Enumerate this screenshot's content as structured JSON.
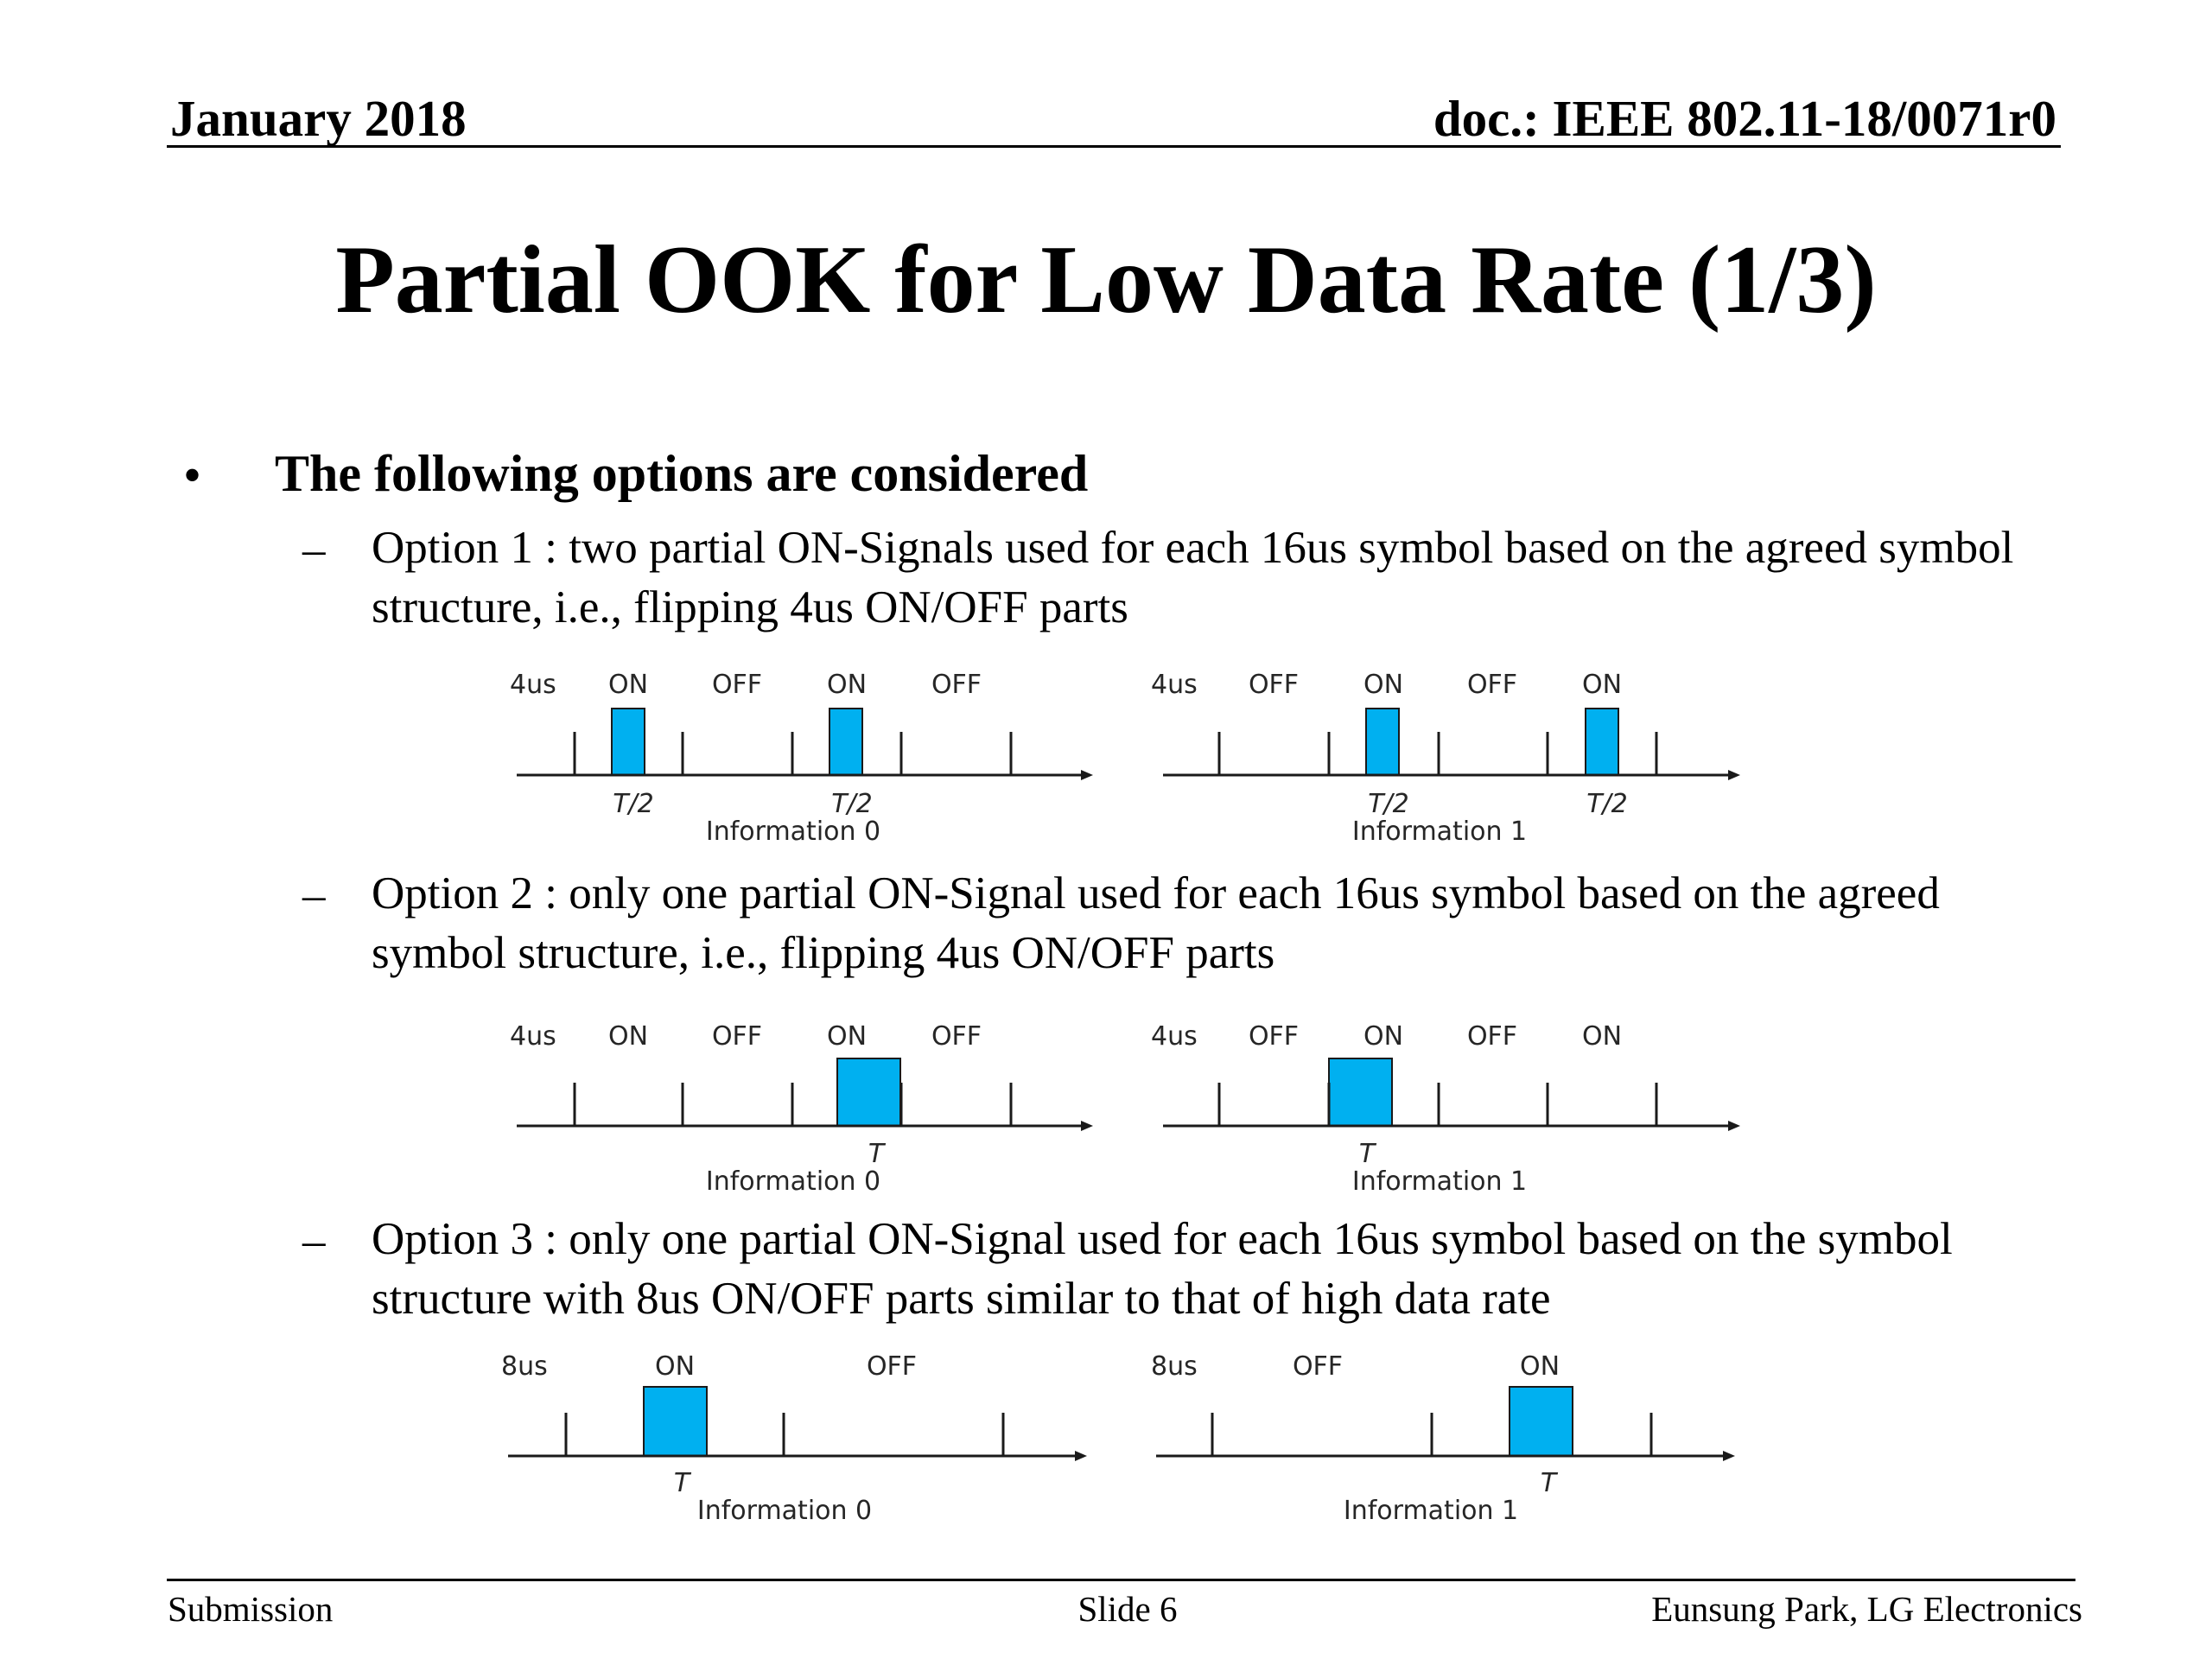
{
  "header": {
    "date": "January 2018",
    "doc": "doc.: IEEE 802.11-18/0071r0"
  },
  "title": "Partial OOK for Low Data Rate (1/3)",
  "bullet": {
    "marker": "•",
    "text": "The following options are considered"
  },
  "options": [
    {
      "marker": "–",
      "text": "Option 1 : two partial ON-Signals used for each 16us symbol based on the agreed symbol structure, i.e., flipping 4us ON/OFF parts"
    },
    {
      "marker": "–",
      "text": "Option 2 : only one partial ON-Signal used for each 16us symbol based on the agreed symbol structure, i.e., flipping 4us ON/OFF parts"
    },
    {
      "marker": "–",
      "text": "Option 3 : only one partial ON-Signal used for each 16us symbol based on the symbol structure with 8us ON/OFF parts similar to that of high data rate"
    }
  ],
  "diagrams": [
    {
      "unit": "4us",
      "labels": [
        "ON",
        "OFF",
        "ON",
        "OFF"
      ],
      "pulse_labels": [
        "T/2",
        "T/2"
      ],
      "caption": "Information 0"
    },
    {
      "unit": "4us",
      "labels": [
        "OFF",
        "ON",
        "OFF",
        "ON"
      ],
      "pulse_labels": [
        "T/2",
        "T/2"
      ],
      "caption": "Information 1"
    },
    {
      "unit": "4us",
      "labels": [
        "ON",
        "OFF",
        "ON",
        "OFF"
      ],
      "pulse_labels": [
        "T"
      ],
      "caption": "Information 0"
    },
    {
      "unit": "4us",
      "labels": [
        "OFF",
        "ON",
        "OFF",
        "ON"
      ],
      "pulse_labels": [
        "T"
      ],
      "caption": "Information 1"
    },
    {
      "unit": "8us",
      "labels": [
        "ON",
        "OFF"
      ],
      "pulse_labels": [
        "T"
      ],
      "caption": "Information 0"
    },
    {
      "unit": "8us",
      "labels": [
        "OFF",
        "ON"
      ],
      "pulse_labels": [
        "T"
      ],
      "caption": "Information 1"
    }
  ],
  "colors": {
    "pulse_fill": "#00b0f0",
    "pulse_stroke": "#1a1a1a",
    "axis": "#1a1a1a"
  },
  "footer": {
    "left": "Submission",
    "center": "Slide 6",
    "right": "Eunsung Park, LG Electronics"
  }
}
